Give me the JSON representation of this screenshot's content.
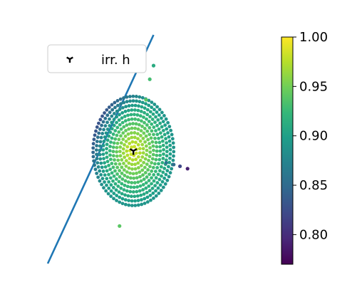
{
  "chart_data": {
    "type": "scatter",
    "title": "",
    "xlabel": "",
    "ylabel": "",
    "xlim": [
      -3.4,
      3.7
    ],
    "ylim": [
      -3.3,
      3.4
    ],
    "axes_visible": false,
    "grid": false,
    "colormap": "viridis",
    "color_range": [
      0.77,
      1.0
    ],
    "legend": {
      "placement": "upper-left",
      "entries": [
        {
          "label": "irr. h",
          "marker": "tri_down",
          "color": "#000000"
        }
      ]
    },
    "colorbar": {
      "ticks": [
        0.8,
        0.85,
        0.9,
        0.95,
        1.0
      ],
      "tick_labels": [
        "0.80",
        "0.85",
        "0.90",
        "0.95",
        "1.00"
      ]
    },
    "line": {
      "x": [
        -3.4,
        0.8
      ],
      "y": [
        -3.3,
        3.4
      ],
      "color": "#1f77b4"
    },
    "marker_point": {
      "label": "irr. h",
      "x": 0.0,
      "y": 0.0,
      "color": "#000000"
    },
    "disk": {
      "center": [
        0.0,
        0.0
      ],
      "radius": 1.6,
      "rings": 12,
      "value_center": 0.99,
      "value_edge": 0.89,
      "low_side_value": 0.83,
      "low_side_direction": [
        -0.85,
        0.53
      ]
    },
    "outliers": [
      {
        "x": 0.8,
        "y": 2.5,
        "value": 0.91
      },
      {
        "x": 0.65,
        "y": 2.1,
        "value": 0.93
      },
      {
        "x": 0.5,
        "y": 1.5,
        "value": 0.94
      },
      {
        "x": 1.3,
        "y": -0.35,
        "value": 0.86
      },
      {
        "x": 1.6,
        "y": -0.4,
        "value": 0.85
      },
      {
        "x": 1.85,
        "y": -0.45,
        "value": 0.82
      },
      {
        "x": 2.15,
        "y": -0.52,
        "value": 0.79
      },
      {
        "x": -0.55,
        "y": -2.2,
        "value": 0.94
      }
    ]
  }
}
